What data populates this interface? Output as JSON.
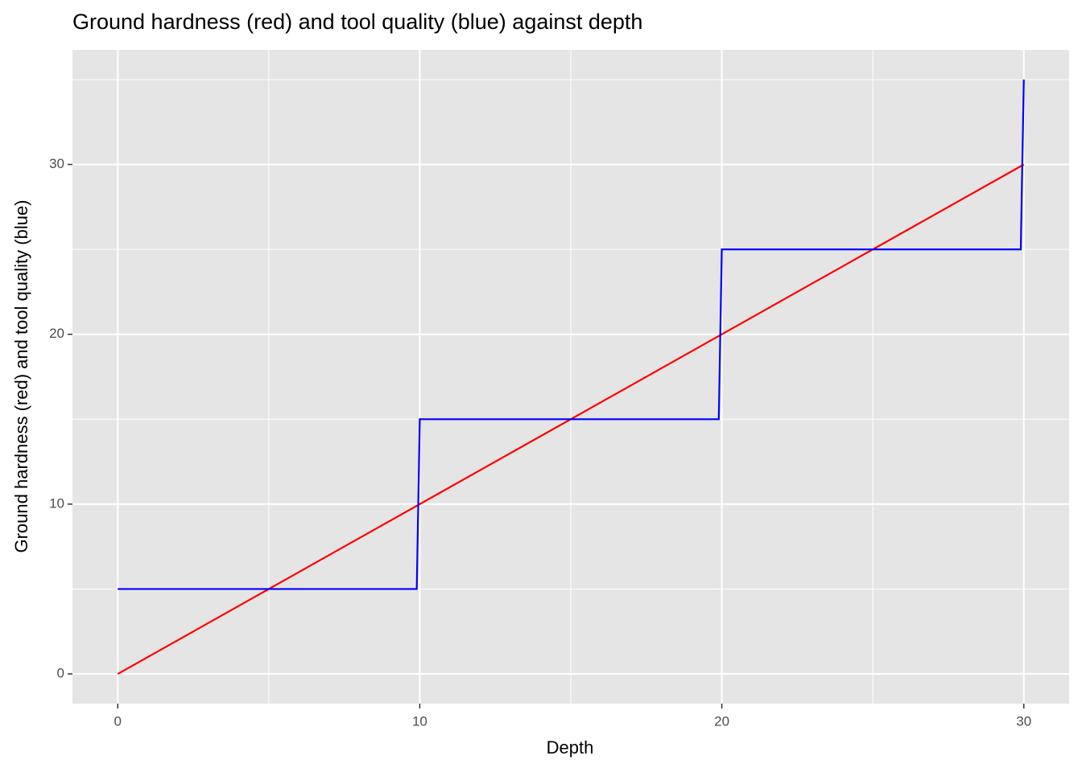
{
  "chart_data": {
    "type": "line",
    "title": "Ground hardness (red) and tool quality (blue) against depth",
    "x_label": "Depth",
    "y_label": "Ground hardness (red) and tool quality (blue)",
    "series": [
      {
        "name": "Ground hardness",
        "color": "#ff0000",
        "x": [
          0,
          30
        ],
        "values": [
          0,
          30
        ]
      },
      {
        "name": "Tool quality",
        "color": "#0000ff",
        "x": [
          0,
          9.9,
          10,
          19.9,
          20,
          29.9,
          30
        ],
        "values": [
          5,
          5,
          15,
          15,
          25,
          25,
          35
        ]
      }
    ],
    "xlim": [
      -1.5,
      31.5
    ],
    "ylim": [
      -1.75,
      36.75
    ],
    "xticks": [
      0,
      10,
      20,
      30
    ],
    "yticks": [
      0,
      10,
      20,
      30
    ],
    "x_minor_grid": [
      5,
      15,
      25
    ],
    "y_minor_grid": [
      5,
      15,
      25,
      35
    ],
    "grid": true,
    "panel_color": "#e5e5e5",
    "grid_color": "#ffffff"
  }
}
